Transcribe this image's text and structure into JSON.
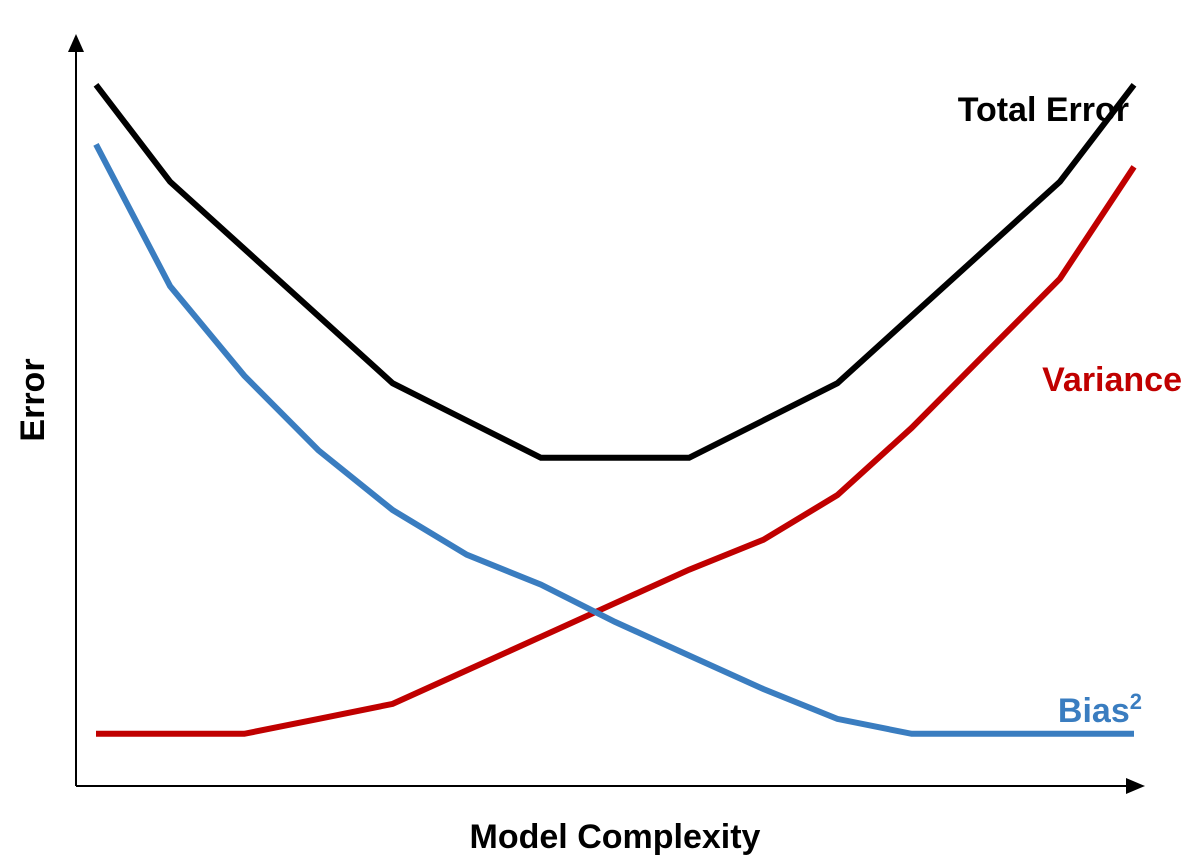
{
  "chart_data": {
    "type": "line",
    "title": "",
    "xlabel": "Model Complexity",
    "ylabel": "Error",
    "x": [
      0,
      1,
      2,
      3,
      4,
      5,
      6,
      7,
      8,
      9,
      10,
      11,
      12,
      13,
      14
    ],
    "xlim": [
      -0.3,
      14.05
    ],
    "ylim": [
      0,
      10
    ],
    "grid": false,
    "legend": "inline labels at right end of each curve",
    "series": [
      {
        "name": "Total Error",
        "color": "#000000",
        "label_parts": {
          "main": "Total Error",
          "sup": ""
        },
        "values": [
          9.4,
          8.1,
          7.2,
          6.3,
          5.4,
          4.9,
          4.4,
          4.4,
          4.4,
          4.9,
          5.4,
          6.3,
          7.2,
          8.1,
          9.4
        ]
      },
      {
        "name": "Variance",
        "color": "#C00000",
        "label_parts": {
          "main": "Variance",
          "sup": ""
        },
        "values": [
          0.7,
          0.7,
          0.7,
          0.9,
          1.1,
          1.55,
          2.0,
          2.45,
          2.9,
          3.3,
          3.9,
          4.8,
          5.8,
          6.8,
          8.3
        ]
      },
      {
        "name": "Bias2",
        "color": "#3A7DC0",
        "label_parts": {
          "main": "Bias",
          "sup": "2"
        },
        "values": [
          8.6,
          6.7,
          5.5,
          4.5,
          3.7,
          3.1,
          2.7,
          2.2,
          1.75,
          1.3,
          0.9,
          0.7,
          0.7,
          0.7,
          0.7
        ]
      }
    ]
  }
}
